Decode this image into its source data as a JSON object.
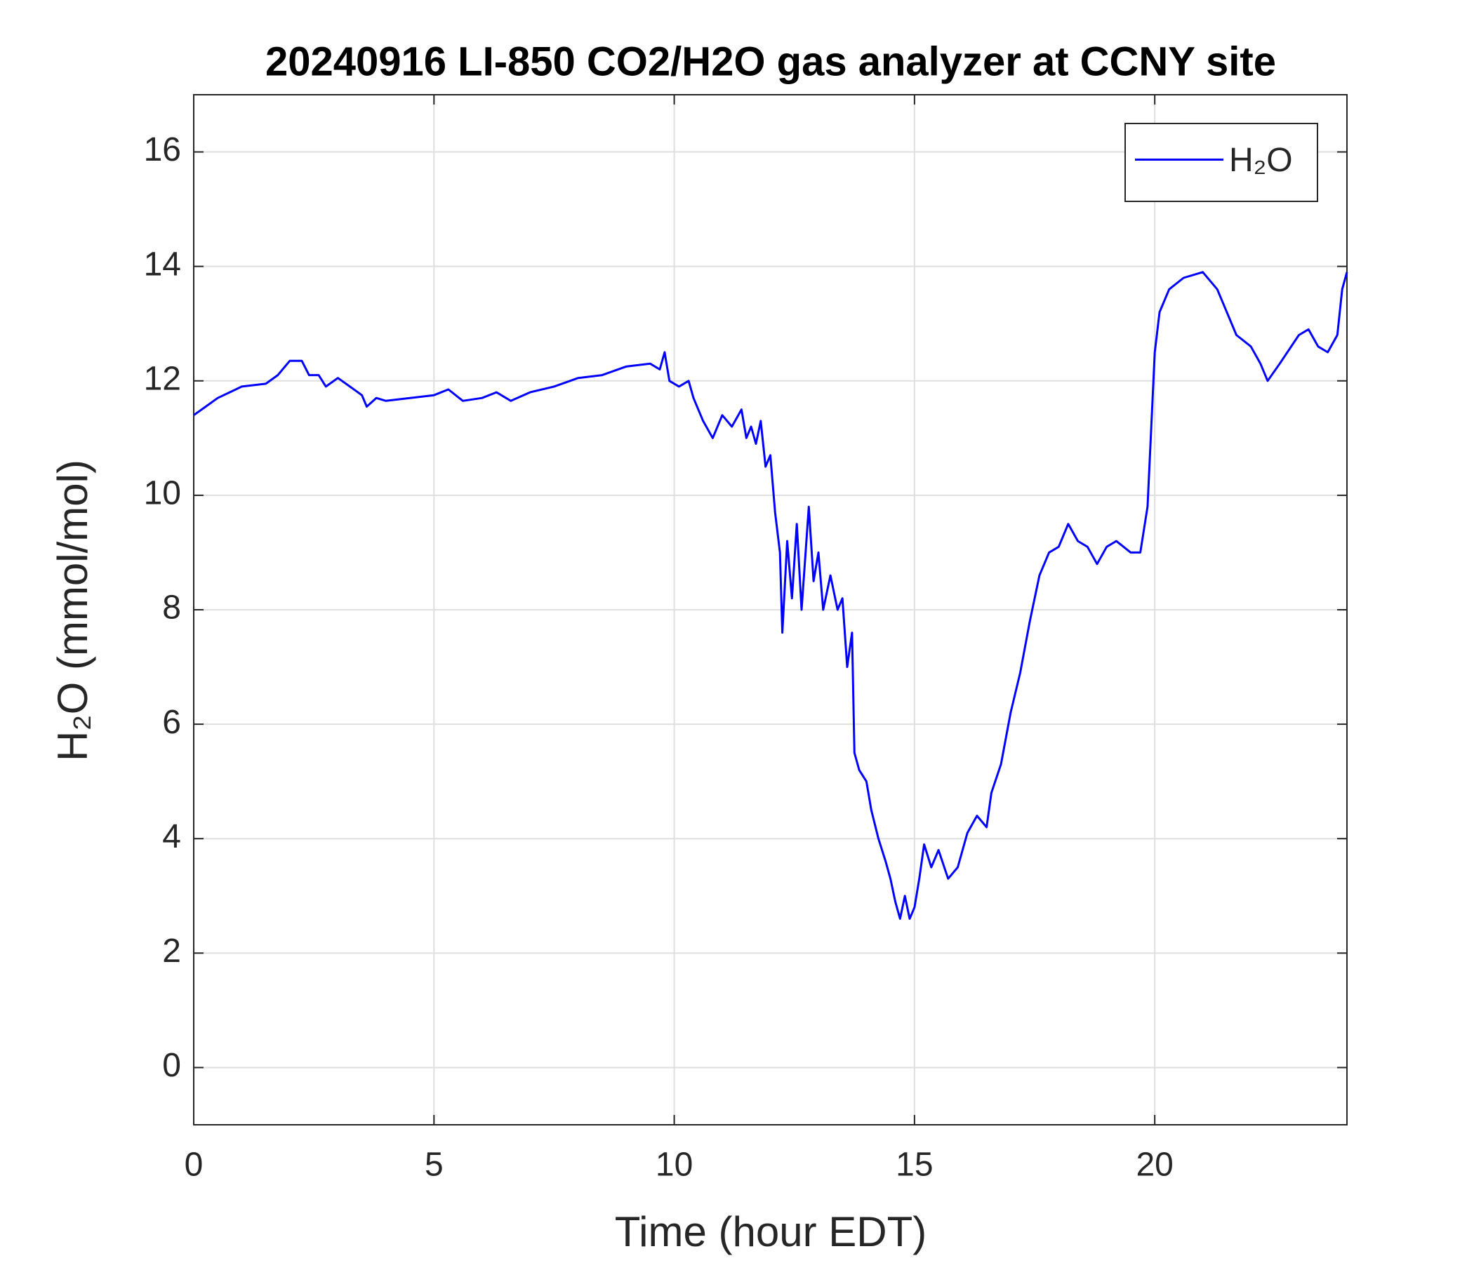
{
  "chart_data": {
    "type": "line",
    "title": "20240916 LI-850 CO2/H2O gas analyzer at CCNY site",
    "x_label": "Time (hour EDT)",
    "y_label": "H₂O (mmol/mol)",
    "xlim": [
      0,
      24
    ],
    "xticks": [
      0,
      5,
      10,
      15,
      20
    ],
    "ylim": [
      -1,
      17
    ],
    "yticks": [
      0,
      2,
      4,
      6,
      8,
      10,
      12,
      14,
      16
    ],
    "grid": true,
    "legend": "upper right",
    "x": [
      0,
      0.25,
      0.5,
      0.75,
      1,
      1.5,
      1.75,
      2,
      2.25,
      2.4,
      2.6,
      2.75,
      3,
      3.25,
      3.5,
      3.6,
      3.8,
      4,
      4.5,
      5,
      5.3,
      5.6,
      6,
      6.3,
      6.6,
      7,
      7.5,
      8,
      8.5,
      9,
      9.5,
      9.7,
      9.8,
      9.9,
      10.1,
      10.3,
      10.4,
      10.6,
      10.8,
      11,
      11.2,
      11.4,
      11.5,
      11.6,
      11.7,
      11.8,
      11.9,
      12,
      12.1,
      12.2,
      12.25,
      12.35,
      12.45,
      12.55,
      12.65,
      12.8,
      12.9,
      13,
      13.1,
      13.25,
      13.4,
      13.5,
      13.6,
      13.7,
      13.75,
      13.85,
      14,
      14.1,
      14.25,
      14.4,
      14.5,
      14.6,
      14.7,
      14.8,
      14.9,
      15,
      15.1,
      15.2,
      15.35,
      15.5,
      15.7,
      15.9,
      16.1,
      16.3,
      16.5,
      16.6,
      16.8,
      17,
      17.2,
      17.4,
      17.6,
      17.8,
      18,
      18.2,
      18.4,
      18.6,
      18.8,
      19,
      19.2,
      19.5,
      19.7,
      19.85,
      20,
      20.1,
      20.3,
      20.6,
      21,
      21.3,
      21.5,
      21.7,
      22,
      22.2,
      22.35,
      22.6,
      23,
      23.2,
      23.4,
      23.6,
      23.8,
      23.9,
      24
    ],
    "series": [
      {
        "name": "H₂O",
        "color": "#0000ff",
        "values": [
          11.4,
          11.55,
          11.7,
          11.8,
          11.9,
          11.95,
          12.1,
          12.35,
          12.35,
          12.1,
          12.1,
          11.9,
          12.05,
          11.9,
          11.75,
          11.55,
          11.7,
          11.65,
          11.7,
          11.75,
          11.85,
          11.65,
          11.7,
          11.8,
          11.65,
          11.8,
          11.9,
          12.05,
          12.1,
          12.25,
          12.3,
          12.2,
          12.5,
          12.0,
          11.9,
          12.0,
          11.7,
          11.3,
          11.0,
          11.4,
          11.2,
          11.5,
          11.0,
          11.2,
          10.9,
          11.3,
          10.5,
          10.7,
          9.7,
          9.0,
          7.6,
          9.2,
          8.2,
          9.5,
          8.0,
          9.8,
          8.5,
          9.0,
          8.0,
          8.6,
          8.0,
          8.2,
          7.0,
          7.6,
          5.5,
          5.2,
          5.0,
          4.5,
          4.0,
          3.6,
          3.3,
          2.9,
          2.6,
          3.0,
          2.6,
          2.8,
          3.3,
          3.9,
          3.5,
          3.8,
          3.3,
          3.5,
          4.1,
          4.4,
          4.2,
          4.8,
          5.3,
          6.2,
          6.9,
          7.8,
          8.6,
          9.0,
          9.1,
          9.5,
          9.2,
          9.1,
          8.8,
          9.1,
          9.2,
          9.0,
          9.0,
          9.8,
          12.5,
          13.2,
          13.6,
          13.8,
          13.9,
          13.6,
          13.2,
          12.8,
          12.6,
          12.3,
          12.0,
          12.3,
          12.8,
          12.9,
          12.6,
          12.5,
          12.8,
          13.6,
          13.9
        ]
      }
    ]
  }
}
